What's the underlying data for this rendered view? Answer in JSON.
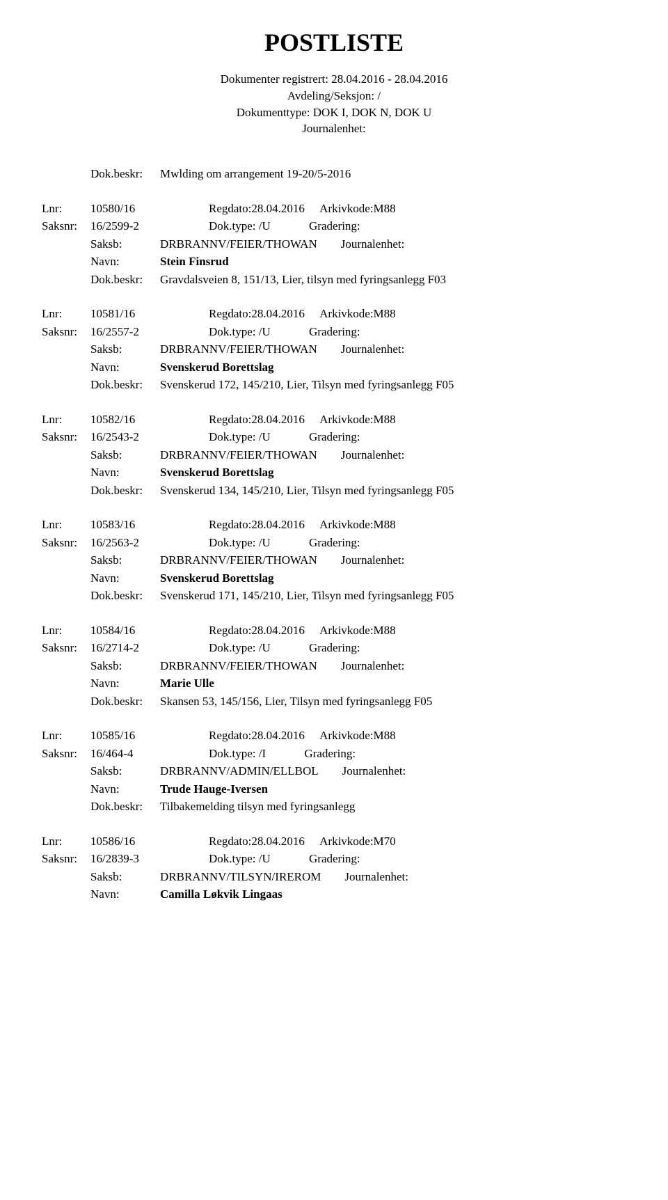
{
  "title": "POSTLISTE",
  "header": {
    "line1": "Dokumenter registrert: 28.04.2016 - 28.04.2016",
    "line2": "Avdeling/Seksjon: /",
    "line3": "Dokumenttype: DOK I, DOK N, DOK U",
    "line4": "Journalenhet:"
  },
  "top_dok": {
    "label": "Dok.beskr:",
    "value": "Mwlding om arrangement 19-20/5-2016"
  },
  "entries": [
    {
      "lnr_label": "Lnr:",
      "lnr": "10580/16",
      "regdato": "Regdato:28.04.2016",
      "arkivkode": "Arkivkode:M88",
      "saksnr_label": "Saksnr:",
      "saksnr": "16/2599-2",
      "doktype": "Dok.type: /U",
      "gradering": "Gradering:",
      "saksb_label": "Saksb:",
      "saksb": "DRBRANNV/FEIER/THOWAN",
      "journalenhet": "Journalenhet:",
      "navn_label": "Navn:",
      "navn": "Stein Finsrud",
      "dokbeskr_label": "Dok.beskr:",
      "dokbeskr": "Gravdalsveien 8, 151/13, Lier, tilsyn med fyringsanlegg F03"
    },
    {
      "lnr_label": "Lnr:",
      "lnr": "10581/16",
      "regdato": "Regdato:28.04.2016",
      "arkivkode": "Arkivkode:M88",
      "saksnr_label": "Saksnr:",
      "saksnr": "16/2557-2",
      "doktype": "Dok.type: /U",
      "gradering": "Gradering:",
      "saksb_label": "Saksb:",
      "saksb": "DRBRANNV/FEIER/THOWAN",
      "journalenhet": "Journalenhet:",
      "navn_label": "Navn:",
      "navn": "Svenskerud Borettslag",
      "dokbeskr_label": "Dok.beskr:",
      "dokbeskr": "Svenskerud 172, 145/210, Lier, Tilsyn med fyringsanlegg F05"
    },
    {
      "lnr_label": "Lnr:",
      "lnr": "10582/16",
      "regdato": "Regdato:28.04.2016",
      "arkivkode": "Arkivkode:M88",
      "saksnr_label": "Saksnr:",
      "saksnr": "16/2543-2",
      "doktype": "Dok.type: /U",
      "gradering": "Gradering:",
      "saksb_label": "Saksb:",
      "saksb": "DRBRANNV/FEIER/THOWAN",
      "journalenhet": "Journalenhet:",
      "navn_label": "Navn:",
      "navn": "Svenskerud Borettslag",
      "dokbeskr_label": "Dok.beskr:",
      "dokbeskr": "Svenskerud 134, 145/210, Lier, Tilsyn med fyringsanlegg F05"
    },
    {
      "lnr_label": "Lnr:",
      "lnr": "10583/16",
      "regdato": "Regdato:28.04.2016",
      "arkivkode": "Arkivkode:M88",
      "saksnr_label": "Saksnr:",
      "saksnr": "16/2563-2",
      "doktype": "Dok.type: /U",
      "gradering": "Gradering:",
      "saksb_label": "Saksb:",
      "saksb": "DRBRANNV/FEIER/THOWAN",
      "journalenhet": "Journalenhet:",
      "navn_label": "Navn:",
      "navn": "Svenskerud Borettslag",
      "dokbeskr_label": "Dok.beskr:",
      "dokbeskr": "Svenskerud 171, 145/210, Lier, Tilsyn med fyringsanlegg F05"
    },
    {
      "lnr_label": "Lnr:",
      "lnr": "10584/16",
      "regdato": "Regdato:28.04.2016",
      "arkivkode": "Arkivkode:M88",
      "saksnr_label": "Saksnr:",
      "saksnr": "16/2714-2",
      "doktype": "Dok.type: /U",
      "gradering": "Gradering:",
      "saksb_label": "Saksb:",
      "saksb": "DRBRANNV/FEIER/THOWAN",
      "journalenhet": "Journalenhet:",
      "navn_label": "Navn:",
      "navn": "Marie Ulle",
      "dokbeskr_label": "Dok.beskr:",
      "dokbeskr": "Skansen 53, 145/156, Lier, Tilsyn med fyringsanlegg F05"
    },
    {
      "lnr_label": "Lnr:",
      "lnr": "10585/16",
      "regdato": "Regdato:28.04.2016",
      "arkivkode": "Arkivkode:M88",
      "saksnr_label": "Saksnr:",
      "saksnr": "16/464-4",
      "doktype": "Dok.type: /I",
      "gradering": "Gradering:",
      "saksb_label": "Saksb:",
      "saksb": "DRBRANNV/ADMIN/ELLBOL",
      "journalenhet": "Journalenhet:",
      "navn_label": "Navn:",
      "navn": "Trude Hauge-Iversen",
      "dokbeskr_label": "Dok.beskr:",
      "dokbeskr": "Tilbakemelding tilsyn med fyringsanlegg"
    },
    {
      "lnr_label": "Lnr:",
      "lnr": "10586/16",
      "regdato": "Regdato:28.04.2016",
      "arkivkode": "Arkivkode:M70",
      "saksnr_label": "Saksnr:",
      "saksnr": "16/2839-3",
      "doktype": "Dok.type: /U",
      "gradering": "Gradering:",
      "saksb_label": "Saksb:",
      "saksb": "DRBRANNV/TILSYN/IREROM",
      "journalenhet": "Journalenhet:",
      "navn_label": "Navn:",
      "navn": "Camilla Løkvik Lingaas",
      "dokbeskr_label": "",
      "dokbeskr": ""
    }
  ]
}
